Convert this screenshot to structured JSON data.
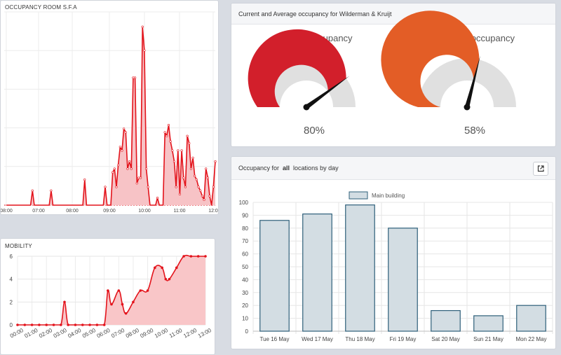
{
  "occupancy_room": {
    "title": "OCCUPANCY ROOM S.F.A",
    "x_ticks": [
      "08:00",
      "07:00",
      "08:00",
      "09:00",
      "10:00",
      "11:00",
      "12:0"
    ],
    "line_color": "#e3131b",
    "fill_color": "#f7c3c6",
    "chart_data": {
      "type": "area",
      "x_labels": [
        "08:00",
        "07:00",
        "08:00",
        "09:00",
        "10:00",
        "11:00",
        "12:0"
      ],
      "series": [
        {
          "values": [
            0,
            0,
            0,
            0,
            0,
            0,
            0,
            0,
            0,
            0,
            0,
            0,
            0,
            0,
            0.08,
            0,
            0,
            0,
            0,
            0,
            0,
            0,
            0,
            0,
            0.08,
            0,
            0,
            0,
            0,
            0,
            0,
            0,
            0,
            0,
            0,
            0,
            0,
            0,
            0,
            0,
            0,
            0,
            0.14,
            0,
            0,
            0,
            0,
            0,
            0,
            0,
            0,
            0,
            0,
            0.1,
            0,
            0,
            0,
            0.18,
            0.2,
            0.1,
            0.22,
            0.32,
            0.3,
            0.42,
            0.4,
            0.2,
            0.24,
            0.2,
            0.7,
            0.7,
            0.12,
            0.15,
            0.15,
            0.98,
            0.85,
            0.2,
            0.1,
            0,
            0,
            0,
            0,
            0.04,
            0,
            0,
            0,
            0.4,
            0.38,
            0.44,
            0.35,
            0.3,
            0.24,
            0.1,
            0.3,
            0.06,
            0.3,
            0.15,
            0.1,
            0.38,
            0.34,
            0.2,
            0.26,
            0.16,
            0.14,
            0.1,
            0.08,
            0.05,
            0.03,
            0.2,
            0.15,
            0.05,
            0,
            0.1,
            0.24
          ]
        }
      ]
    }
  },
  "mobility": {
    "title": "MOBILITY",
    "y_ticks": [
      "6",
      "4",
      "2",
      "0"
    ],
    "x_ticks": [
      "00:00",
      "01:00",
      "02:00",
      "03:00",
      "04:00",
      "05:00",
      "06:00",
      "07:00",
      "08:00",
      "09:00",
      "10:00",
      "11:00",
      "12:00",
      "13:00"
    ],
    "chart_data": {
      "type": "area",
      "ylim": [
        0,
        6
      ],
      "x": [
        0,
        0.5,
        1,
        1.5,
        2,
        2.5,
        3,
        3.25,
        3.5,
        4,
        4.5,
        5,
        5.5,
        6,
        6.25,
        6.5,
        7,
        7.25,
        7.5,
        8,
        8.5,
        9,
        9.5,
        10,
        10.25,
        10.5,
        11,
        11.5,
        12,
        12.5,
        13
      ],
      "values": [
        0,
        0,
        0,
        0,
        0,
        0,
        0,
        2,
        0,
        0,
        0,
        0,
        0,
        0,
        3,
        1.8,
        3,
        1.8,
        1,
        2,
        3,
        3,
        5,
        5,
        4,
        4,
        5,
        6,
        6,
        6,
        6
      ]
    }
  },
  "gauges_panel": {
    "title": "Current and Average occupancy for Wilderman & Kruijt",
    "gauges": [
      {
        "label": "Current occupancy",
        "value_text": "80%",
        "value": 0.8,
        "color": "#d21f2b"
      },
      {
        "label": "Average occupancy",
        "value_text": "58%",
        "value": 0.58,
        "color": "#e35d26"
      }
    ]
  },
  "day_chart": {
    "title_prefix": "Occupancy for",
    "title_location": "all",
    "title_suffix": "locations by day",
    "export_icon": "external-link-icon",
    "chart_data": {
      "type": "bar",
      "categories": [
        "Tue 16 May",
        "Wed 17 May",
        "Thu 18 May",
        "Fri 19 May",
        "Sat 20 May",
        "Sun 21 May",
        "Mon 22 May"
      ],
      "series": [
        {
          "name": "Main building",
          "values": [
            86,
            91,
            98,
            80,
            16,
            12,
            20
          ]
        }
      ],
      "ylim": [
        0,
        100
      ],
      "y_ticks": [
        "100",
        "90",
        "80",
        "70",
        "60",
        "50",
        "40",
        "30",
        "20",
        "10",
        "0"
      ],
      "legend": "top-center",
      "bar_fill": "#d3dde3",
      "bar_stroke": "#2e5f7a"
    }
  }
}
